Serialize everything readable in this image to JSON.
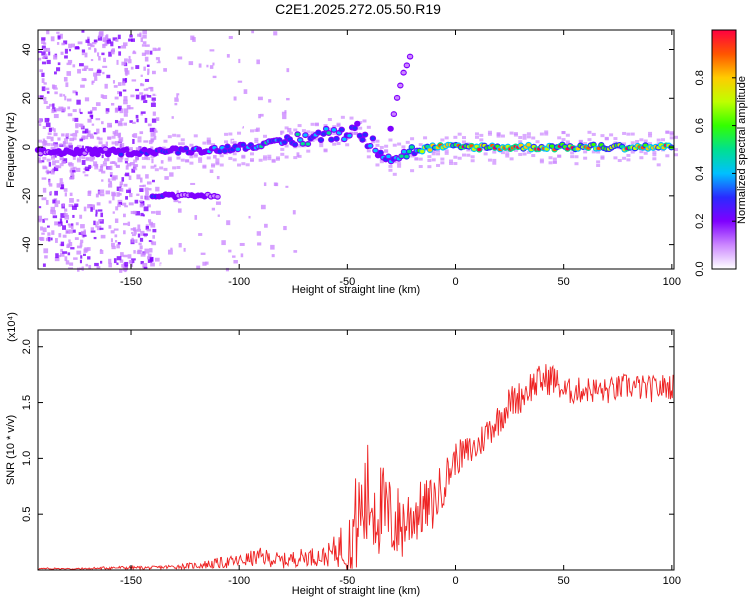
{
  "title": "C2E1.2025.272.05.50.R19",
  "colors": {
    "snr_line": "#ee2222",
    "colormap": [
      "#ffffff",
      "#cc88ff",
      "#7f00ff",
      "#2a2aff",
      "#00c0ff",
      "#00e090",
      "#33ff00",
      "#bfff00",
      "#ffcc00",
      "#ff5500",
      "#ff0040"
    ]
  },
  "chart_data": [
    {
      "type": "heatmap",
      "title": "C2E1.2025.272.05.50.R19",
      "xlabel": "Height of straight line (km)",
      "ylabel": "Frequency (Hz)",
      "xlim": [
        -193,
        101
      ],
      "ylim": [
        -50,
        48
      ],
      "xticks": [
        -150,
        -100,
        -50,
        0,
        50,
        100
      ],
      "yticks": [
        -40,
        -20,
        0,
        20,
        40
      ],
      "colorbar": {
        "label": "Normalized spectral amplitude",
        "range": [
          0,
          1
        ],
        "ticks": [
          0.0,
          0.2,
          0.4,
          0.6,
          0.8
        ]
      },
      "features": [
        {
          "name": "main-trace",
          "x": [
            -193,
            -150,
            -110,
            -80,
            -60,
            -45,
            -40,
            -30,
            -20,
            -10,
            0,
            50,
            100
          ],
          "y": [
            -2,
            -2,
            -1,
            2,
            5,
            7,
            2,
            -4,
            -2,
            0,
            0,
            0,
            0
          ],
          "amplitude": [
            0.2,
            0.25,
            0.35,
            0.45,
            0.45,
            0.4,
            0.35,
            0.4,
            0.5,
            0.85,
            0.9,
            0.9,
            0.9
          ]
        },
        {
          "name": "side-band-negative",
          "x": [
            -140,
            -135,
            -130,
            -125,
            -120,
            -115,
            -110
          ],
          "y": [
            -20,
            -20,
            -20,
            -20,
            -20,
            -20,
            -20
          ],
          "amplitude": [
            0.3,
            0.3,
            0.2,
            0.2,
            0.25,
            0.15,
            0.1
          ]
        },
        {
          "name": "rising-streak",
          "x": [
            -30,
            -27,
            -24,
            -21
          ],
          "y": [
            8,
            20,
            30,
            37
          ],
          "amplitude": [
            0.15,
            0.12,
            0.1,
            0.1
          ]
        }
      ]
    },
    {
      "type": "line",
      "xlabel": "Height of straight line (km)",
      "ylabel": "SNR (10 * v/v)",
      "y_multiplier": "(x10⁴)",
      "xlim": [
        -193,
        101
      ],
      "ylim": [
        0,
        2.15
      ],
      "xticks": [
        -150,
        -100,
        -50,
        0,
        50,
        100
      ],
      "yticks": [
        0.5,
        1.0,
        1.5,
        2.0
      ],
      "series": [
        {
          "name": "SNR",
          "x": [
            -193,
            -180,
            -170,
            -160,
            -150,
            -140,
            -130,
            -120,
            -110,
            -100,
            -90,
            -80,
            -70,
            -60,
            -55,
            -50,
            -45,
            -40,
            -35,
            -30,
            -25,
            -20,
            -15,
            -10,
            -5,
            0,
            5,
            10,
            15,
            20,
            25,
            30,
            35,
            40,
            45,
            50,
            55,
            60,
            70,
            80,
            90,
            100
          ],
          "y": [
            0.01,
            0.01,
            0.01,
            0.02,
            0.02,
            0.02,
            0.03,
            0.04,
            0.06,
            0.08,
            0.12,
            0.08,
            0.12,
            0.12,
            0.18,
            0.25,
            0.45,
            0.65,
            0.55,
            0.45,
            0.4,
            0.5,
            0.55,
            0.6,
            0.8,
            1.0,
            1.05,
            1.1,
            1.25,
            1.35,
            1.5,
            1.55,
            1.65,
            1.7,
            1.72,
            1.6,
            1.6,
            1.62,
            1.6,
            1.65,
            1.62,
            1.65
          ],
          "noise_amplitude": [
            0.01,
            0.01,
            0.01,
            0.015,
            0.015,
            0.015,
            0.02,
            0.03,
            0.05,
            0.06,
            0.08,
            0.07,
            0.08,
            0.09,
            0.15,
            0.3,
            0.5,
            0.55,
            0.45,
            0.38,
            0.35,
            0.3,
            0.25,
            0.25,
            0.2,
            0.15,
            0.15,
            0.15,
            0.15,
            0.15,
            0.15,
            0.15,
            0.15,
            0.15,
            0.15,
            0.12,
            0.12,
            0.12,
            0.12,
            0.12,
            0.12,
            0.12
          ]
        }
      ]
    }
  ]
}
